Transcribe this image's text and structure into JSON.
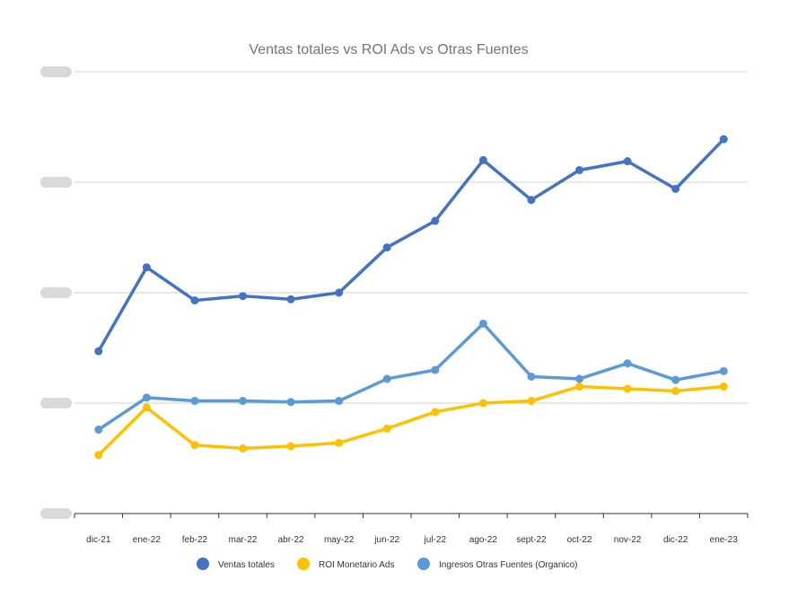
{
  "chart_data": {
    "type": "line",
    "title": "Ventas totales vs ROI Ads vs Otras Fuentes",
    "xlabel": "",
    "ylabel": "",
    "y_tick_labels_redacted": true,
    "ylim": [
      0,
      4
    ],
    "grid": true,
    "legend_position": "bottom",
    "categories": [
      "dic-21",
      "ene-22",
      "feb-22",
      "mar-22",
      "abr-22",
      "may-22",
      "jun-22",
      "jul-22",
      "ago-22",
      "sept-22",
      "oct-22",
      "nov-22",
      "dic-22",
      "ene-23"
    ],
    "series": [
      {
        "name": "Ventas totales",
        "color": "#4472C4",
        "values": [
          1.47,
          2.23,
          1.93,
          1.97,
          1.94,
          2.0,
          2.41,
          2.65,
          3.2,
          2.84,
          3.11,
          3.19,
          2.94,
          3.39
        ]
      },
      {
        "name": "ROI Monetario Ads",
        "color": "#FFC000",
        "values": [
          0.53,
          0.96,
          0.62,
          0.59,
          0.61,
          0.64,
          0.77,
          0.92,
          1.0,
          1.02,
          1.15,
          1.13,
          1.11,
          1.15
        ]
      },
      {
        "name": "Ingresos Otras Fuentes (Organico)",
        "color": "#5B9BD5",
        "values": [
          0.76,
          1.05,
          1.02,
          1.02,
          1.01,
          1.02,
          1.22,
          1.3,
          1.72,
          1.24,
          1.22,
          1.36,
          1.21,
          1.29
        ]
      }
    ]
  }
}
